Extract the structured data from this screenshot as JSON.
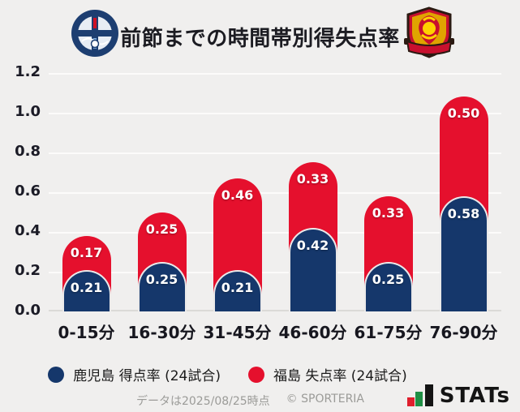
{
  "header": {
    "title": "前節までの時間帯別得失点率",
    "left_logo_name": "鹿児島ユナイテッドFC",
    "right_logo_name": "福島ユナイテッドFC"
  },
  "chart_data": {
    "type": "bar",
    "stacked": true,
    "title": "前節までの時間帯別得失点率",
    "categories": [
      "0-15分",
      "16-30分",
      "31-45分",
      "46-60分",
      "61-75分",
      "76-90分"
    ],
    "series": [
      {
        "name": "鹿児島 得点率 (24試合)",
        "color": "#15376b",
        "values": [
          0.21,
          0.25,
          0.21,
          0.42,
          0.25,
          0.58
        ]
      },
      {
        "name": "福島 失点率 (24試合)",
        "color": "#e5102d",
        "values": [
          0.17,
          0.25,
          0.46,
          0.33,
          0.33,
          0.5
        ]
      }
    ],
    "ylim": [
      0,
      1.2
    ],
    "yticks": [
      0.0,
      0.2,
      0.4,
      0.6,
      0.8,
      1.0,
      1.2
    ],
    "grid": true,
    "legend_position": "bottom"
  },
  "footer": {
    "note": "データは2025/08/25時点",
    "copyright": "© SPORTERIA",
    "brand": "STATs"
  },
  "colors": {
    "background": "#f0efee",
    "navy": "#15376b",
    "red": "#e5102d",
    "gridline": "#fcfbfa",
    "baseline": "#dbdad7",
    "axis_text": "#1b1b26",
    "footer_text": "#9b9b98"
  }
}
